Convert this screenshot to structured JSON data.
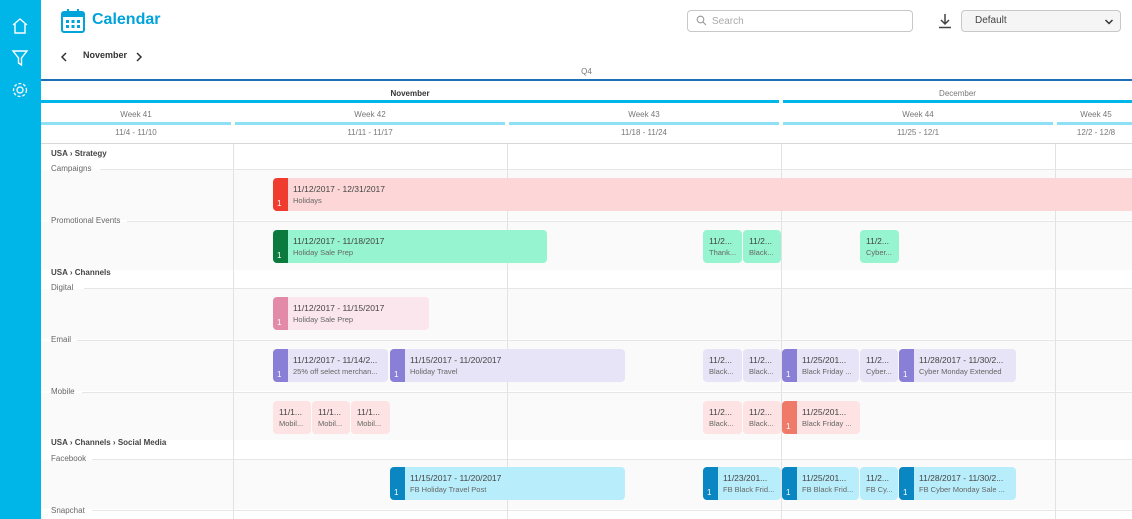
{
  "app": {
    "title": "Calendar"
  },
  "sidebar": {
    "items": [
      "home-icon",
      "filter-icon",
      "gear-icon"
    ]
  },
  "search": {
    "placeholder": "Search",
    "value": ""
  },
  "view_select": {
    "value": "Default"
  },
  "nav": {
    "month": "November"
  },
  "header": {
    "quarter": "Q4",
    "months": [
      "November",
      "December"
    ],
    "weeks": [
      "Week 41",
      "Week 42",
      "Week 43",
      "Week 44",
      "Week 45"
    ],
    "ranges": [
      "11/4 - 11/10",
      "11/11 - 11/17",
      "11/18 - 11/24",
      "11/25 - 12/1",
      "12/2 - 12/8"
    ]
  },
  "rows": {
    "usa_strategy": "USA › Strategy",
    "campaigns": "Campaigns",
    "promotional_events": "Promotional Events",
    "usa_channels": "USA › Channels",
    "digital": "Digital",
    "email": "Email",
    "mobile": "Mobile",
    "usa_social": "USA › Channels › Social Media",
    "facebook": "Facebook",
    "snapchat": "Snapchat"
  },
  "events": [
    {
      "id": "holidays",
      "dates": "11/12/2017 - 12/31/2017",
      "name": "Holidays",
      "count": "1"
    },
    {
      "id": "holiday-sale-prep-promo",
      "dates": "11/12/2017 - 11/18/2017",
      "name": "Holiday Sale Prep",
      "count": "1"
    },
    {
      "id": "thanksgiving",
      "dates": "11/2...",
      "name": "Thank..."
    },
    {
      "id": "black-friday-promo",
      "dates": "11/2...",
      "name": "Black..."
    },
    {
      "id": "cyber-monday-promo",
      "dates": "11/2...",
      "name": "Cyber..."
    },
    {
      "id": "holiday-sale-prep-digital",
      "dates": "11/12/2017 - 11/15/2017",
      "name": "Holiday Sale Prep",
      "count": "1"
    },
    {
      "id": "email-25off",
      "dates": "11/12/2017 - 11/14/2...",
      "name": "25% off select merchan...",
      "count": "1"
    },
    {
      "id": "email-holiday-travel",
      "dates": "11/15/2017 - 11/20/2017",
      "name": "Holiday Travel",
      "count": "1"
    },
    {
      "id": "email-black-1",
      "dates": "11/2...",
      "name": "Black..."
    },
    {
      "id": "email-black-2",
      "dates": "11/2...",
      "name": "Black..."
    },
    {
      "id": "email-black-friday",
      "dates": "11/25/201...",
      "name": "Black Friday ...",
      "count": "1"
    },
    {
      "id": "email-cyber",
      "dates": "11/2...",
      "name": "Cyber..."
    },
    {
      "id": "email-cyber-monday-ext",
      "dates": "11/28/2017 - 11/30/2...",
      "name": "Cyber Monday Extended",
      "count": "1"
    },
    {
      "id": "mobile-1",
      "dates": "11/1...",
      "name": "Mobil..."
    },
    {
      "id": "mobile-2",
      "dates": "11/1...",
      "name": "Mobil..."
    },
    {
      "id": "mobile-3",
      "dates": "11/1...",
      "name": "Mobil..."
    },
    {
      "id": "mobile-black-1",
      "dates": "11/2...",
      "name": "Black..."
    },
    {
      "id": "mobile-black-2",
      "dates": "11/2...",
      "name": "Black..."
    },
    {
      "id": "mobile-black-friday",
      "dates": "11/25/201...",
      "name": "Black Friday ...",
      "count": "1"
    },
    {
      "id": "fb-holiday-travel",
      "dates": "11/15/2017 - 11/20/2017",
      "name": "FB Holiday Travel Post",
      "count": "1"
    },
    {
      "id": "fb-black-1",
      "dates": "11/23/201...",
      "name": "FB Black Frid...",
      "count": "1"
    },
    {
      "id": "fb-black-2",
      "dates": "11/25/201...",
      "name": "FB Black Frid...",
      "count": "1"
    },
    {
      "id": "fb-cyber",
      "dates": "11/2...",
      "name": "FB Cy..."
    },
    {
      "id": "fb-cyber-monday-sale",
      "dates": "11/28/2017 - 11/30/2...",
      "name": "FB Cyber Monday Sale ...",
      "count": "1"
    }
  ],
  "colors": {
    "brand": "#00b5e8",
    "strategy_tab": "#f03c2e",
    "strategy_bg": "#fdd7d7",
    "promo_tab": "#0b7a3e",
    "promo_bg": "#96f5d0",
    "digital_tab": "#e38aa8",
    "digital_bg": "#fbe6ee",
    "email_tab": "#8a7fd6",
    "email_bg": "#e6e4f6",
    "mobile_tab": "#f07a6a",
    "mobile_bg": "#fde3e3",
    "fb_tab": "#0a86c2",
    "fb_bg": "#b8eefb"
  }
}
